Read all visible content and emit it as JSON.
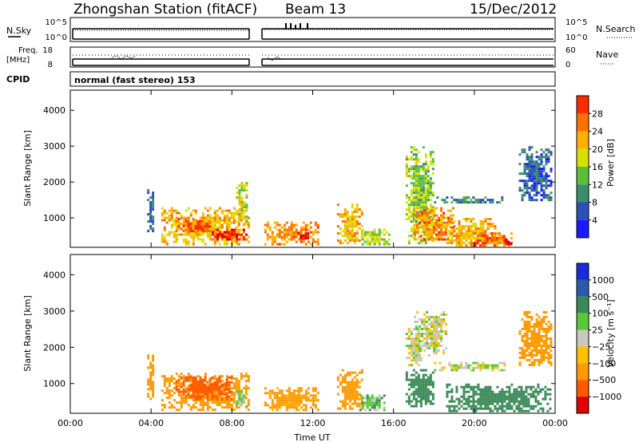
{
  "header": {
    "station": "Zhongshan Station (fitACF)",
    "beam": "Beam 13",
    "date": "15/Dec/2012"
  },
  "top_panels": {
    "nsky_label": "N.Sky",
    "nsky_ticks": [
      "10^5",
      "10^0"
    ],
    "nsearch_label": "N.Search",
    "nsearch_ticks": [
      "10^5",
      "10^0"
    ],
    "freq_label_1": "Freq.",
    "freq_label_2": "[MHz]",
    "freq_ticks": [
      "18",
      "8"
    ],
    "nave_label": "Nave",
    "nave_ticks": [
      "60",
      "0"
    ],
    "cpid_label": "CPID",
    "mode_text": "normal (fast stereo) 153"
  },
  "colors": {
    "power": [
      "#1a1aff",
      "#2a4fb8",
      "#3c8c6e",
      "#5bbf3c",
      "#d8e000",
      "#ffb000",
      "#ff7000",
      "#ff2a00",
      "#dd0000"
    ],
    "velocity": [
      "#e00000",
      "#ff5a00",
      "#ff9a00",
      "#ffc000",
      "#c8c8c0",
      "#58c838",
      "#3a8a58",
      "#2a5aa8",
      "#1a2ad8"
    ]
  },
  "chart_data": [
    {
      "type": "heatmap",
      "name": "power",
      "ylabel": "Slant Range [km]",
      "ylim": [
        180,
        4560
      ],
      "yticks": [
        "1000",
        "2000",
        "3000",
        "4000"
      ],
      "colorbar_label": "Power [dB]",
      "colorbar_ticks": [
        "4",
        "8",
        "12",
        "16",
        "20",
        "24",
        "28"
      ],
      "colorbar_range": [
        0,
        30
      ],
      "patches": [
        {
          "x": [
            3.8,
            4.1
          ],
          "y": [
            600,
            1800
          ],
          "v": 6
        },
        {
          "x": [
            4.5,
            8.8
          ],
          "y": [
            250,
            1300
          ],
          "v": 18
        },
        {
          "x": [
            5.2,
            7.0
          ],
          "y": [
            600,
            1000
          ],
          "v": 22
        },
        {
          "x": [
            7.0,
            8.7
          ],
          "y": [
            400,
            700
          ],
          "v": 26
        },
        {
          "x": [
            8.2,
            8.7
          ],
          "y": [
            800,
            2000
          ],
          "v": 15
        },
        {
          "x": [
            9.6,
            12.3
          ],
          "y": [
            250,
            900
          ],
          "v": 20
        },
        {
          "x": [
            11.0,
            11.8
          ],
          "y": [
            400,
            600
          ],
          "v": 27
        },
        {
          "x": [
            13.2,
            14.4
          ],
          "y": [
            300,
            1400
          ],
          "v": 18
        },
        {
          "x": [
            14.3,
            15.8
          ],
          "y": [
            250,
            700
          ],
          "v": 14
        },
        {
          "x": [
            16.6,
            18.0
          ],
          "y": [
            300,
            3000
          ],
          "v": 13
        },
        {
          "x": [
            17.0,
            19.0
          ],
          "y": [
            400,
            1300
          ],
          "v": 20
        },
        {
          "x": [
            18.0,
            21.5
          ],
          "y": [
            1400,
            1600
          ],
          "v": 8
        },
        {
          "x": [
            18.6,
            21.0
          ],
          "y": [
            250,
            1000
          ],
          "v": 18
        },
        {
          "x": [
            20.0,
            21.8
          ],
          "y": [
            250,
            600
          ],
          "v": 22
        },
        {
          "x": [
            21.4,
            21.8
          ],
          "y": [
            250,
            500
          ],
          "v": 28
        },
        {
          "x": [
            22.2,
            23.8
          ],
          "y": [
            1500,
            3000
          ],
          "v": 6
        }
      ]
    },
    {
      "type": "heatmap",
      "name": "velocity",
      "ylabel": "Slant Range [km]",
      "xlabel": "Time UT",
      "xticks": [
        "00:00",
        "04:00",
        "08:00",
        "12:00",
        "16:00",
        "20:00",
        "00:00"
      ],
      "xlim": [
        0,
        24
      ],
      "ylim": [
        180,
        4560
      ],
      "yticks": [
        "1000",
        "2000",
        "3000",
        "4000"
      ],
      "colorbar_label": "Velocity [m s⁻¹]",
      "colorbar_ticks": [
        "1000",
        "500",
        "100",
        "25",
        "−25",
        "−100",
        "−500",
        "−1000"
      ],
      "patches": [
        {
          "x": [
            3.8,
            4.1
          ],
          "y": [
            600,
            1800
          ],
          "v": -250
        },
        {
          "x": [
            4.5,
            8.8
          ],
          "y": [
            250,
            1300
          ],
          "v": -400
        },
        {
          "x": [
            5.2,
            8.0
          ],
          "y": [
            600,
            1200
          ],
          "v": -600
        },
        {
          "x": [
            8.2,
            8.7
          ],
          "y": [
            400,
            800
          ],
          "v": 10
        },
        {
          "x": [
            9.6,
            12.3
          ],
          "y": [
            250,
            900
          ],
          "v": -150
        },
        {
          "x": [
            13.2,
            14.4
          ],
          "y": [
            300,
            1400
          ],
          "v": -350
        },
        {
          "x": [
            14.3,
            15.6
          ],
          "y": [
            250,
            700
          ],
          "v": 60
        },
        {
          "x": [
            16.6,
            17.4
          ],
          "y": [
            1500,
            2600
          ],
          "v": 0
        },
        {
          "x": [
            16.6,
            18.0
          ],
          "y": [
            400,
            1400
          ],
          "v": 300
        },
        {
          "x": [
            17.0,
            18.6
          ],
          "y": [
            1800,
            3000
          ],
          "v": 0
        },
        {
          "x": [
            18.0,
            21.5
          ],
          "y": [
            1400,
            1600
          ],
          "v": 5
        },
        {
          "x": [
            18.6,
            23.8
          ],
          "y": [
            250,
            1000
          ],
          "v": 300
        },
        {
          "x": [
            22.2,
            23.8
          ],
          "y": [
            1500,
            3000
          ],
          "v": -200
        }
      ]
    }
  ]
}
